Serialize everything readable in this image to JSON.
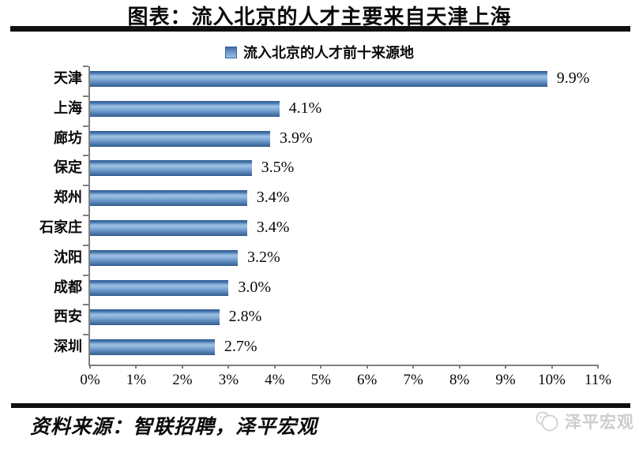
{
  "page": {
    "title": "图表：流入北京的人才主要来自天津上海",
    "source_label": "资料来源：智联招聘，泽平宏观",
    "watermark_label": "泽平宏观"
  },
  "chart_data": {
    "type": "bar",
    "orientation": "horizontal",
    "title": "图表：流入北京的人才主要来自天津上海",
    "legend": "流入北京的人才前十来源地",
    "legend_position": "top",
    "categories": [
      "天津",
      "上海",
      "廊坊",
      "保定",
      "郑州",
      "石家庄",
      "沈阳",
      "成都",
      "西安",
      "深圳"
    ],
    "values": [
      9.9,
      4.1,
      3.9,
      3.5,
      3.4,
      3.4,
      3.2,
      3.0,
      2.8,
      2.7
    ],
    "value_labels": [
      "9.9%",
      "4.1%",
      "3.9%",
      "3.5%",
      "3.4%",
      "3.4%",
      "3.2%",
      "3.0%",
      "2.8%",
      "2.7%"
    ],
    "xlim": [
      0,
      11
    ],
    "xticks": [
      "0%",
      "1%",
      "2%",
      "3%",
      "4%",
      "5%",
      "6%",
      "7%",
      "8%",
      "9%",
      "10%",
      "11%"
    ],
    "grid": false,
    "bar_color": "#4f81bd",
    "axis_color": "#7f7f7f"
  }
}
